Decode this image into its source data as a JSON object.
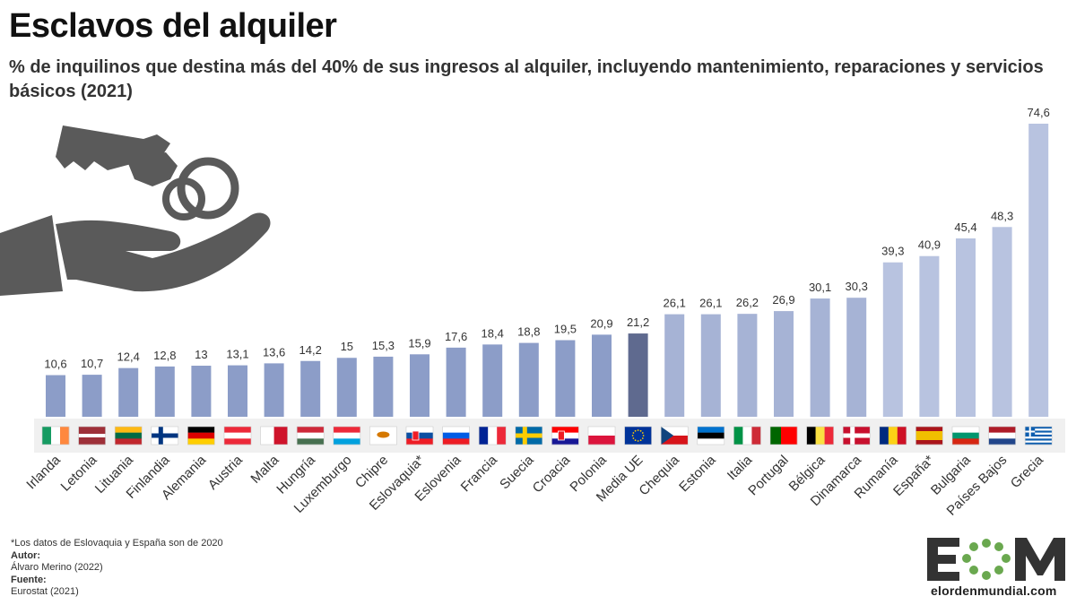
{
  "header": {
    "title": "Esclavos del alquiler",
    "subtitle": "% de inquilinos que destina más del 40% de sus ingresos al alquiler, incluyendo mantenimiento, reparaciones y servicios básicos (2021)"
  },
  "footer": {
    "note": "*Los datos de Eslovaquia y España son de 2020",
    "author_label": "Autor:",
    "author": "Álvaro Merino (2022)",
    "source_label": "Fuente:",
    "source": "Eurostat (2021)"
  },
  "logo": {
    "letters": "EOM",
    "site": "elordenmundial.com"
  },
  "icon": "hand-holding-keys-icon",
  "colors": {
    "low": "#8c9dc8",
    "mid": "#a6b3d5",
    "high": "#b8c3e0",
    "eu_average": "#5f6a8f",
    "icon": "#5a5a5a"
  },
  "chart_data": {
    "type": "bar",
    "title": "Esclavos del alquiler",
    "xlabel": "",
    "ylabel": "",
    "ylim": [
      0,
      80
    ],
    "grid": false,
    "highlight": "Media UE",
    "categories": [
      "Irlanda",
      "Letonia",
      "Lituania",
      "Finlandia",
      "Alemania",
      "Austria",
      "Malta",
      "Hungría",
      "Luxemburgo",
      "Chipre",
      "Eslovaquia*",
      "Eslovenia",
      "Francia",
      "Suecia",
      "Croacia",
      "Polonia",
      "Media UE",
      "Chequia",
      "Estonia",
      "Italia",
      "Portugal",
      "Bélgica",
      "Dinamarca",
      "Rumanía",
      "España*",
      "Bulgaria",
      "Países Bajos",
      "Grecia"
    ],
    "values": [
      10.6,
      10.7,
      12.4,
      12.8,
      13,
      13.1,
      13.6,
      14.2,
      15,
      15.3,
      15.9,
      17.6,
      18.4,
      18.8,
      19.5,
      20.9,
      21.2,
      26.1,
      26.1,
      26.2,
      26.9,
      30.1,
      30.3,
      39.3,
      40.9,
      45.4,
      48.3,
      74.6
    ],
    "value_labels": [
      "10,6",
      "10,7",
      "12,4",
      "12,8",
      "13",
      "13,1",
      "13,6",
      "14,2",
      "15",
      "15,3",
      "15,9",
      "17,6",
      "18,4",
      "18,8",
      "19,5",
      "20,9",
      "21,2",
      "26,1",
      "26,1",
      "26,2",
      "26,9",
      "30,1",
      "30,3",
      "39,3",
      "40,9",
      "45,4",
      "48,3",
      "74,6"
    ]
  }
}
